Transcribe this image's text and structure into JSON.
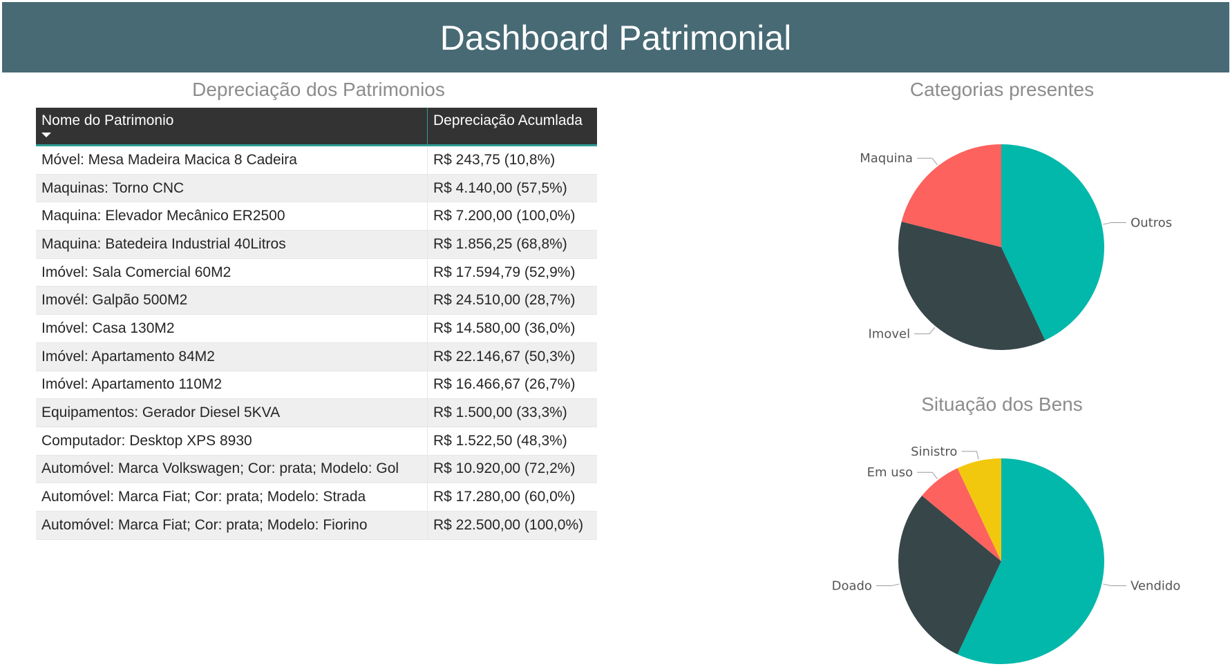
{
  "header": {
    "title": "Dashboard Patrimonial"
  },
  "table": {
    "title": "Depreciação dos Patrimonios",
    "columns": [
      "Nome do Patrimonio",
      "Depreciação Acumlada"
    ],
    "rows": [
      [
        "Móvel: Mesa Madeira Macica 8 Cadeira",
        "R$ 243,75 (10,8%)"
      ],
      [
        "Maquinas: Torno CNC",
        "R$ 4.140,00 (57,5%)"
      ],
      [
        "Maquina: Elevador Mecânico ER2500",
        "R$ 7.200,00 (100,0%)"
      ],
      [
        "Maquina: Batedeira Industrial 40Litros",
        "R$ 1.856,25 (68,8%)"
      ],
      [
        "Imóvel: Sala Comercial 60M2",
        "R$ 17.594,79 (52,9%)"
      ],
      [
        "Imovél: Galpão 500M2",
        "R$ 24.510,00 (28,7%)"
      ],
      [
        "Imóvel: Casa 130M2",
        "R$ 14.580,00 (36,0%)"
      ],
      [
        "Imóvel: Apartamento 84M2",
        "R$ 22.146,67 (50,3%)"
      ],
      [
        "Imóvel: Apartamento 110M2",
        "R$ 16.466,67 (26,7%)"
      ],
      [
        "Equipamentos: Gerador Diesel 5KVA",
        "R$ 1.500,00 (33,3%)"
      ],
      [
        "Computador: Desktop XPS 8930",
        "R$ 1.522,50 (48,3%)"
      ],
      [
        "Automóvel: Marca Volkswagen; Cor: prata; Modelo: Gol",
        "R$ 10.920,00 (72,2%)"
      ],
      [
        "Automóvel: Marca Fiat; Cor: prata; Modelo: Strada",
        "R$ 17.280,00 (60,0%)"
      ],
      [
        "Automóvel: Marca Fiat; Cor: prata; Modelo: Fiorino",
        "R$ 22.500,00 (100,0%)"
      ]
    ]
  },
  "chart_data": [
    {
      "type": "pie",
      "title": "Categorias presentes",
      "slices": [
        {
          "label": "Outros",
          "value": 43,
          "color": "#01b8aa",
          "label_side": "right"
        },
        {
          "label": "Imovel",
          "value": 36,
          "color": "#374649",
          "label_side": "left"
        },
        {
          "label": "Maquina",
          "value": 21,
          "color": "#fd625e",
          "label_side": "left"
        }
      ]
    },
    {
      "type": "pie",
      "title": "Situação dos Bens",
      "slices": [
        {
          "label": "Vendido",
          "value": 57,
          "color": "#01b8aa",
          "label_side": "right"
        },
        {
          "label": "Doado",
          "value": 29,
          "color": "#374649",
          "label_side": "left"
        },
        {
          "label": "Em uso",
          "value": 7,
          "color": "#fd625e",
          "label_side": "left"
        },
        {
          "label": "Sinistro",
          "value": 7,
          "color": "#f2c80f",
          "label_side": "left"
        }
      ]
    }
  ]
}
